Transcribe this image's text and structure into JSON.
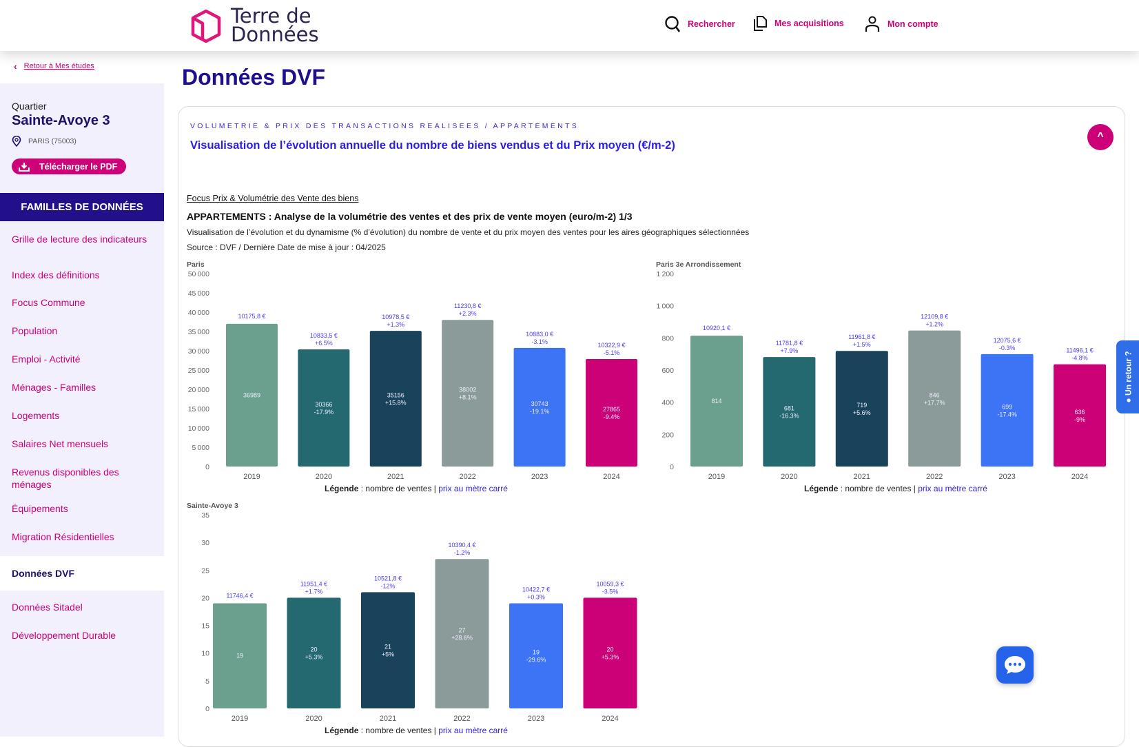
{
  "header": {
    "logo_line1": "Terre de",
    "logo_line2": "Données",
    "nav": [
      {
        "label": "Rechercher",
        "icon": "search-icon"
      },
      {
        "label": "Mes acquisitions",
        "icon": "documents-icon"
      },
      {
        "label": "Mon compte",
        "icon": "user-icon"
      }
    ]
  },
  "sidebar": {
    "back_link": "Retour à Mes études",
    "zone_type": "Quartier",
    "zone_name": "Sainte-Avoye 3",
    "location": "PARIS (75003)",
    "pdf_button": "Télécharger le PDF",
    "families_title": "FAMILLES DE DONNÉES",
    "items": [
      {
        "label": "Grille de lecture des indicateurs"
      },
      {
        "label": "Index des définitions"
      },
      {
        "label": "Focus Commune"
      },
      {
        "label": "Population"
      },
      {
        "label": "Emploi - Activité"
      },
      {
        "label": "Ménages - Familles"
      },
      {
        "label": "Logements"
      },
      {
        "label": "Salaires Net mensuels"
      },
      {
        "label": "Revenus disponibles des ménages"
      },
      {
        "label": "Équipements"
      },
      {
        "label": "Migration Résidentielles"
      },
      {
        "label": "Données DVF",
        "active": true
      },
      {
        "label": "Données Sitadel"
      },
      {
        "label": "Développement Durable"
      }
    ]
  },
  "main": {
    "page_title": "Données DVF",
    "section_label": "VOLUMETRIE & PRIX DES TRANSACTIONS REALISEES / APPARTEMENTS",
    "section_subtitle": "Visualisation de l’évolution annuelle du nombre de biens vendus et du Prix moyen (€/m-2)",
    "focus_link": "Focus Prix & Volumétrie des Vente des biens",
    "analysis_title": "APPARTEMENTS : Analyse de la volumétrie des ventes et des prix de vente moyen (euro/m-2) 1/3",
    "description": "Visualisation de l’évolution et du dynamisme (% d’évolution) du nombre de vente et du prix moyen des ventes pour les aires géographiques sélectionnées",
    "source": "Source : DVF / Dernière Date de mise à jour : 04/2025",
    "legend_label": "Légende",
    "legend_sep": " : nombre de ventes | ",
    "legend_price": "prix au mètre carré",
    "feedback_tab": "Un retour ?"
  },
  "colors": {
    "accent": "#cc0077",
    "navy": "#22108a",
    "price_label": "#4b3cf0",
    "bars": [
      "#6aa08d",
      "#246870",
      "#18435a",
      "#8b9b99",
      "#3d73f5",
      "#cc0077"
    ]
  },
  "chart_data": [
    {
      "type": "bar",
      "title": "Paris",
      "categories": [
        "2019",
        "2020",
        "2021",
        "2022",
        "2023",
        "2024"
      ],
      "values": [
        36989,
        30366,
        35156,
        38002,
        30743,
        27865
      ],
      "value_variation": [
        null,
        "-17.9%",
        "+15.8%",
        "+8.1%",
        "-19.1%",
        "-9.4%"
      ],
      "price": [
        "10175,8 €",
        "10833,5 €",
        "10978,5 €",
        "11230,8 €",
        "10883,0 €",
        "10322,9 €"
      ],
      "price_variation": [
        null,
        "+6.5%",
        "+1.3%",
        "+2.3%",
        "-3.1%",
        "-5.1%"
      ],
      "yticks": [
        "0",
        "5000",
        "10000",
        "15000",
        "20000",
        "25000",
        "30000",
        "35000",
        "40000",
        "45000",
        "50000"
      ],
      "ylim": [
        0,
        50000
      ]
    },
    {
      "type": "bar",
      "title": "Paris 3e Arrondissement",
      "categories": [
        "2019",
        "2020",
        "2021",
        "2022",
        "2023",
        "2024"
      ],
      "values": [
        814,
        681,
        719,
        846,
        699,
        636
      ],
      "value_variation": [
        null,
        "-16.3%",
        "+5.6%",
        "+17.7%",
        "-17.4%",
        "-9%"
      ],
      "price": [
        "10920,1 €",
        "11781,8 €",
        "11961,8 €",
        "12109,8 €",
        "12075,6 €",
        "11496,1 €"
      ],
      "price_variation": [
        null,
        "+7.9%",
        "+1.5%",
        "+1.2%",
        "-0.3%",
        "-4.8%"
      ],
      "yticks": [
        "0",
        "200",
        "400",
        "600",
        "800",
        "1000",
        "1200"
      ],
      "ylim": [
        0,
        1200
      ]
    },
    {
      "type": "bar",
      "title": "Sainte-Avoye 3",
      "categories": [
        "2019",
        "2020",
        "2021",
        "2022",
        "2023",
        "2024"
      ],
      "values": [
        19,
        20,
        21,
        27,
        19,
        20
      ],
      "value_variation": [
        null,
        "+5.3%",
        "+5%",
        "+28.6%",
        "-29.6%",
        "+5.3%"
      ],
      "price": [
        "11746,4 €",
        "11951,4 €",
        "10521,8 €",
        "10390,4 €",
        "10422,7 €",
        "10059,3 €"
      ],
      "price_variation": [
        null,
        "+1.7%",
        "-12%",
        "-1.2%",
        "+0.3%",
        "-3.5%"
      ],
      "yticks": [
        "0",
        "5",
        "10",
        "15",
        "20",
        "25",
        "30",
        "35"
      ],
      "ylim": [
        0,
        35
      ]
    }
  ]
}
